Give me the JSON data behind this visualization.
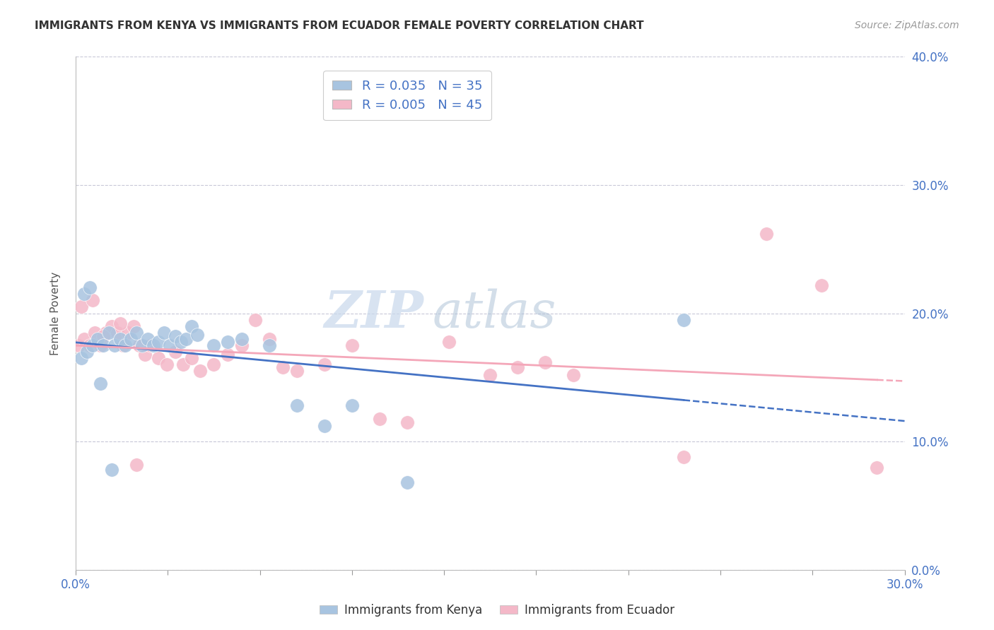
{
  "title": "IMMIGRANTS FROM KENYA VS IMMIGRANTS FROM ECUADOR FEMALE POVERTY CORRELATION CHART",
  "source": "Source: ZipAtlas.com",
  "ylabel_label": "Female Poverty",
  "x_label_bottom": "Immigrants from Kenya",
  "x_label_bottom2": "Immigrants from Ecuador",
  "xlim": [
    0.0,
    0.3
  ],
  "ylim": [
    0.0,
    0.4
  ],
  "xtick_positions": [
    0.0,
    0.03333,
    0.06667,
    0.1,
    0.13333,
    0.16667,
    0.2,
    0.23333,
    0.26667,
    0.3
  ],
  "xtick_labels_show": {
    "0.0": "0.0%",
    "0.30": "30.0%"
  },
  "yticks": [
    0.0,
    0.1,
    0.2,
    0.3,
    0.4
  ],
  "kenya_color": "#a8c4e0",
  "ecuador_color": "#f4b8c8",
  "kenya_line_color": "#4472c4",
  "ecuador_line_color": "#f4a7b9",
  "kenya_R": 0.035,
  "kenya_N": 35,
  "ecuador_R": 0.005,
  "ecuador_N": 45,
  "watermark_zip": "ZIP",
  "watermark_atlas": "atlas",
  "kenya_x": [
    0.002,
    0.004,
    0.006,
    0.008,
    0.01,
    0.012,
    0.014,
    0.016,
    0.018,
    0.02,
    0.022,
    0.024,
    0.026,
    0.028,
    0.03,
    0.032,
    0.034,
    0.036,
    0.038,
    0.04,
    0.042,
    0.044,
    0.05,
    0.055,
    0.06,
    0.07,
    0.08,
    0.09,
    0.1,
    0.12,
    0.003,
    0.005,
    0.009,
    0.013,
    0.22
  ],
  "kenya_y": [
    0.165,
    0.17,
    0.175,
    0.18,
    0.175,
    0.185,
    0.175,
    0.18,
    0.175,
    0.18,
    0.185,
    0.175,
    0.18,
    0.175,
    0.178,
    0.185,
    0.175,
    0.182,
    0.178,
    0.18,
    0.19,
    0.183,
    0.175,
    0.178,
    0.18,
    0.175,
    0.128,
    0.112,
    0.128,
    0.068,
    0.215,
    0.22,
    0.145,
    0.078,
    0.195
  ],
  "ecuador_x": [
    0.001,
    0.003,
    0.005,
    0.007,
    0.009,
    0.011,
    0.013,
    0.015,
    0.017,
    0.019,
    0.021,
    0.023,
    0.025,
    0.027,
    0.03,
    0.033,
    0.036,
    0.039,
    0.042,
    0.045,
    0.05,
    0.055,
    0.06,
    0.065,
    0.07,
    0.075,
    0.08,
    0.09,
    0.1,
    0.11,
    0.12,
    0.135,
    0.15,
    0.16,
    0.17,
    0.18,
    0.22,
    0.25,
    0.27,
    0.29,
    0.002,
    0.006,
    0.01,
    0.016,
    0.022
  ],
  "ecuador_y": [
    0.175,
    0.18,
    0.175,
    0.185,
    0.175,
    0.185,
    0.19,
    0.185,
    0.175,
    0.185,
    0.19,
    0.175,
    0.168,
    0.175,
    0.165,
    0.16,
    0.17,
    0.16,
    0.165,
    0.155,
    0.16,
    0.168,
    0.175,
    0.195,
    0.18,
    0.158,
    0.155,
    0.16,
    0.175,
    0.118,
    0.115,
    0.178,
    0.152,
    0.158,
    0.162,
    0.152,
    0.088,
    0.262,
    0.222,
    0.08,
    0.205,
    0.21,
    0.182,
    0.192,
    0.082
  ]
}
